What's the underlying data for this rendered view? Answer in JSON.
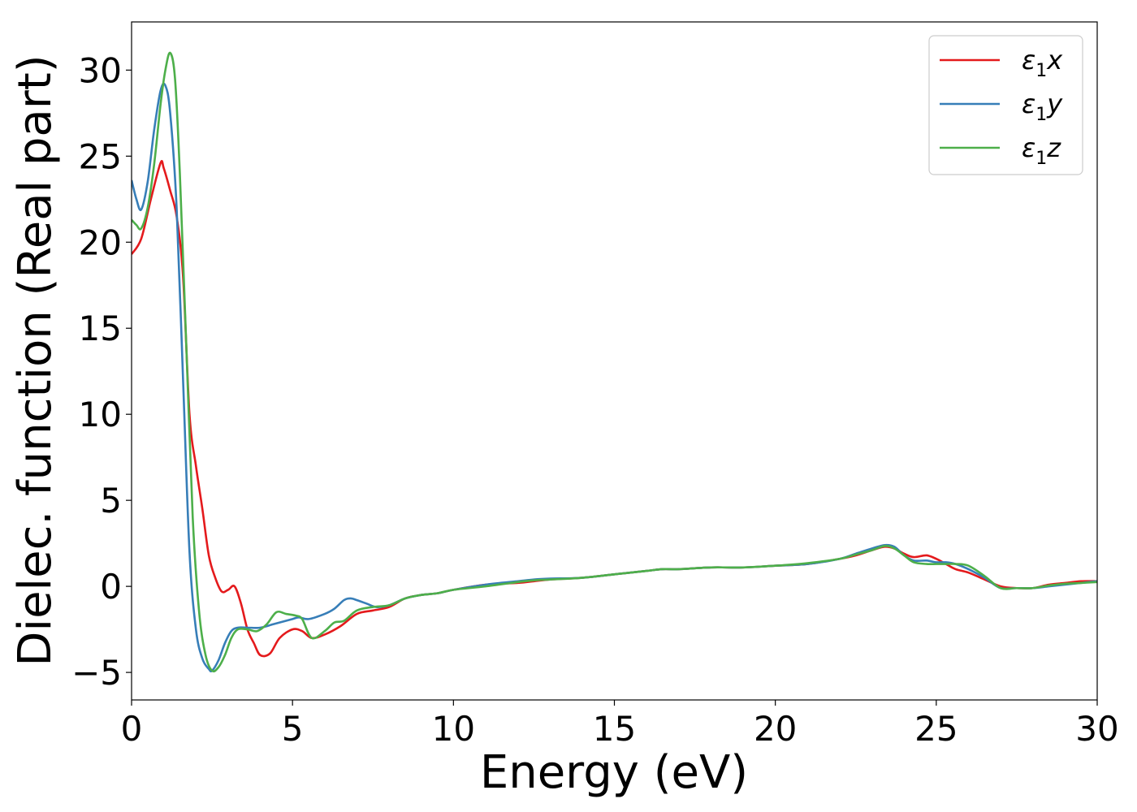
{
  "chart_data": {
    "type": "line",
    "title": "",
    "xlabel": "Energy (eV)",
    "ylabel": "Dielec. function (Real part)",
    "xlim": [
      0,
      30
    ],
    "ylim": [
      -6.6,
      32.8
    ],
    "xticks": [
      0,
      5,
      10,
      15,
      20,
      25,
      30
    ],
    "yticks": [
      -5,
      0,
      5,
      10,
      15,
      20,
      25,
      30
    ],
    "xtick_labels": [
      "0",
      "5",
      "10",
      "15",
      "20",
      "25",
      "30"
    ],
    "ytick_labels": [
      "−5",
      "0",
      "5",
      "10",
      "15",
      "20",
      "25",
      "30"
    ],
    "grid": false,
    "legend_position": "top-right",
    "series": [
      {
        "name": "ε₁x",
        "legend": {
          "base": "ε",
          "sub": "1",
          "var": "x"
        },
        "color": "#e41a1c",
        "x": [
          0,
          0.3,
          0.6,
          0.9,
          1.0,
          1.2,
          1.4,
          1.6,
          1.8,
          2.0,
          2.2,
          2.4,
          2.6,
          2.8,
          3.0,
          3.2,
          3.4,
          3.6,
          3.8,
          4.0,
          4.3,
          4.6,
          5.0,
          5.3,
          5.6,
          6.0,
          6.5,
          7.0,
          7.5,
          8.0,
          8.5,
          9.0,
          9.5,
          10.0,
          11.0,
          12.0,
          12.5,
          13.0,
          14.0,
          15.0,
          16.0,
          16.5,
          17.0,
          18.0,
          19.0,
          20.0,
          21.0,
          22.0,
          22.5,
          23.0,
          23.4,
          23.7,
          24.0,
          24.3,
          24.7,
          25.0,
          25.3,
          25.6,
          26.0,
          26.5,
          27.0,
          27.5,
          28.0,
          28.5,
          29.0,
          29.5,
          30.0
        ],
        "y": [
          19.3,
          20.2,
          22.5,
          24.6,
          24.3,
          23.0,
          21.5,
          18.0,
          10.0,
          7.0,
          4.5,
          1.8,
          0.5,
          -0.3,
          -0.2,
          0,
          -1.0,
          -2.5,
          -3.3,
          -4.0,
          -3.9,
          -3.0,
          -2.5,
          -2.6,
          -3.0,
          -2.8,
          -2.3,
          -1.6,
          -1.4,
          -1.2,
          -0.7,
          -0.5,
          -0.4,
          -0.2,
          0.1,
          0.2,
          0.3,
          0.4,
          0.5,
          0.7,
          0.9,
          1.0,
          1.0,
          1.1,
          1.1,
          1.2,
          1.3,
          1.6,
          1.8,
          2.1,
          2.3,
          2.2,
          1.9,
          1.7,
          1.8,
          1.6,
          1.3,
          1.0,
          0.8,
          0.4,
          0.0,
          -0.1,
          -0.1,
          0.1,
          0.2,
          0.3,
          0.3
        ]
      },
      {
        "name": "ε₁y",
        "legend": {
          "base": "ε",
          "sub": "1",
          "var": "y"
        },
        "color": "#377eb8",
        "x": [
          0,
          0.15,
          0.3,
          0.5,
          0.7,
          0.9,
          1.05,
          1.2,
          1.4,
          1.6,
          1.8,
          2.0,
          2.2,
          2.4,
          2.5,
          2.7,
          2.9,
          3.1,
          3.3,
          3.6,
          4.0,
          4.4,
          4.8,
          5.0,
          5.2,
          5.5,
          6.0,
          6.3,
          6.6,
          6.8,
          7.0,
          7.3,
          7.6,
          8.0,
          8.5,
          9.0,
          9.5,
          10.0,
          11.0,
          12.0,
          12.5,
          13.0,
          14.0,
          15.0,
          16.0,
          16.5,
          17.0,
          18.0,
          19.0,
          20.0,
          21.0,
          22.0,
          22.5,
          23.0,
          23.4,
          23.7,
          24.0,
          24.3,
          24.7,
          25.0,
          25.3,
          25.6,
          26.0,
          26.5,
          27.0,
          27.5,
          28.0,
          28.5,
          29.0,
          29.5,
          30.0
        ],
        "y": [
          23.6,
          22.5,
          21.9,
          23.5,
          26.5,
          28.8,
          29.1,
          27.5,
          22.0,
          12.0,
          2.0,
          -2.5,
          -4.2,
          -4.8,
          -4.9,
          -4.3,
          -3.3,
          -2.6,
          -2.4,
          -2.4,
          -2.4,
          -2.2,
          -2.0,
          -1.9,
          -1.8,
          -1.9,
          -1.6,
          -1.3,
          -0.8,
          -0.7,
          -0.8,
          -1.0,
          -1.2,
          -1.1,
          -0.7,
          -0.5,
          -0.4,
          -0.2,
          0.1,
          0.3,
          0.4,
          0.45,
          0.5,
          0.7,
          0.9,
          1.0,
          1.0,
          1.1,
          1.1,
          1.2,
          1.3,
          1.6,
          1.9,
          2.2,
          2.4,
          2.3,
          1.8,
          1.5,
          1.5,
          1.4,
          1.4,
          1.3,
          1.0,
          0.5,
          -0.1,
          -0.1,
          -0.1,
          0.0,
          0.1,
          0.2,
          0.3
        ]
      },
      {
        "name": "ε₁z",
        "legend": {
          "base": "ε",
          "sub": "1",
          "var": "z"
        },
        "color": "#4daf4a",
        "x": [
          0,
          0.15,
          0.3,
          0.5,
          0.7,
          0.9,
          1.05,
          1.2,
          1.35,
          1.5,
          1.7,
          1.9,
          2.1,
          2.3,
          2.5,
          2.7,
          2.9,
          3.1,
          3.3,
          3.6,
          3.9,
          4.2,
          4.5,
          4.8,
          5.1,
          5.3,
          5.6,
          6.0,
          6.3,
          6.6,
          7.0,
          7.5,
          8.0,
          8.5,
          9.0,
          9.5,
          10.0,
          11.0,
          12.0,
          12.5,
          13.0,
          14.0,
          15.0,
          16.0,
          16.5,
          17.0,
          18.0,
          19.0,
          20.0,
          21.0,
          22.0,
          22.5,
          23.0,
          23.4,
          23.7,
          24.0,
          24.3,
          24.7,
          25.0,
          25.3,
          25.6,
          26.0,
          26.5,
          27.0,
          27.5,
          28.0,
          28.5,
          29.0,
          29.5,
          30.0
        ],
        "y": [
          21.3,
          21.0,
          20.8,
          22.0,
          24.5,
          28.0,
          30.0,
          31.0,
          29.5,
          24.0,
          14.0,
          4.0,
          -1.5,
          -4.0,
          -4.9,
          -4.7,
          -4.0,
          -3.0,
          -2.5,
          -2.5,
          -2.6,
          -2.2,
          -1.5,
          -1.6,
          -1.7,
          -1.9,
          -3.0,
          -2.6,
          -2.1,
          -2.0,
          -1.4,
          -1.2,
          -1.1,
          -0.7,
          -0.5,
          -0.4,
          -0.2,
          0.0,
          0.25,
          0.35,
          0.4,
          0.5,
          0.7,
          0.9,
          1.0,
          1.0,
          1.1,
          1.1,
          1.2,
          1.35,
          1.6,
          1.85,
          2.1,
          2.35,
          2.2,
          1.8,
          1.4,
          1.3,
          1.3,
          1.3,
          1.3,
          1.2,
          0.6,
          -0.1,
          -0.1,
          -0.1,
          0.05,
          0.15,
          0.2,
          0.25
        ]
      }
    ]
  }
}
